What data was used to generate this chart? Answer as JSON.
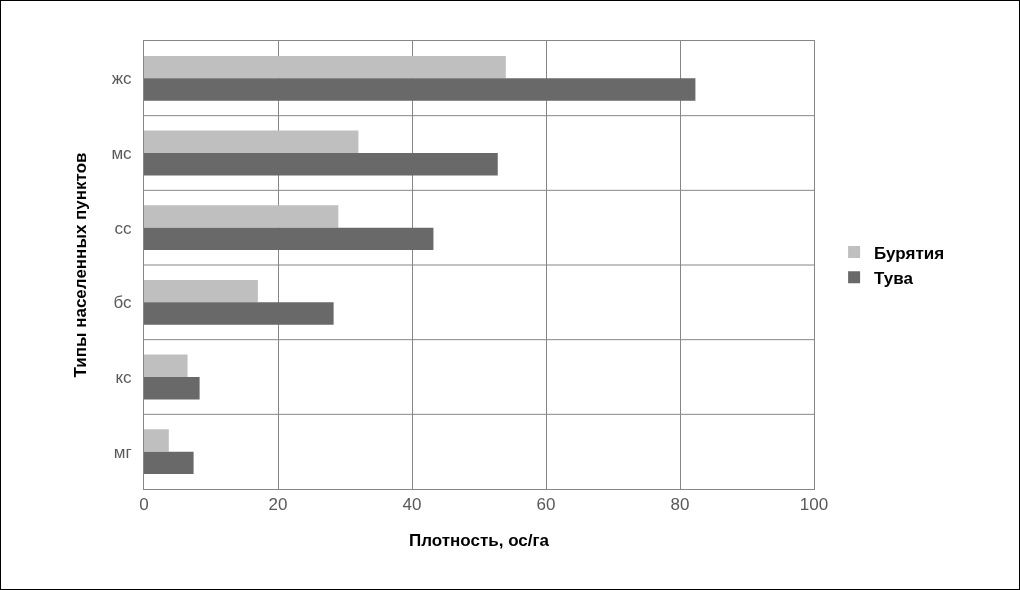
{
  "chart_data": {
    "type": "bar",
    "orientation": "horizontal",
    "xlabel": "Плотность, ос/га",
    "ylabel": "Типы населенных пунктов",
    "categories": [
      "жс",
      "мс",
      "сс",
      "бс",
      "кс",
      "мг"
    ],
    "series": [
      {
        "name": "Бурятия",
        "color": "#bfbfbf",
        "values": [
          54,
          32,
          29,
          17,
          6.5,
          3.7
        ]
      },
      {
        "name": "Тува",
        "color": "#696969",
        "values": [
          82.3,
          52.8,
          43.2,
          28.3,
          8.3,
          7.4
        ]
      }
    ],
    "xlim": [
      0,
      100
    ],
    "xticks": [
      0,
      20,
      40,
      60,
      80,
      100
    ],
    "grid": true,
    "legend": "right"
  }
}
